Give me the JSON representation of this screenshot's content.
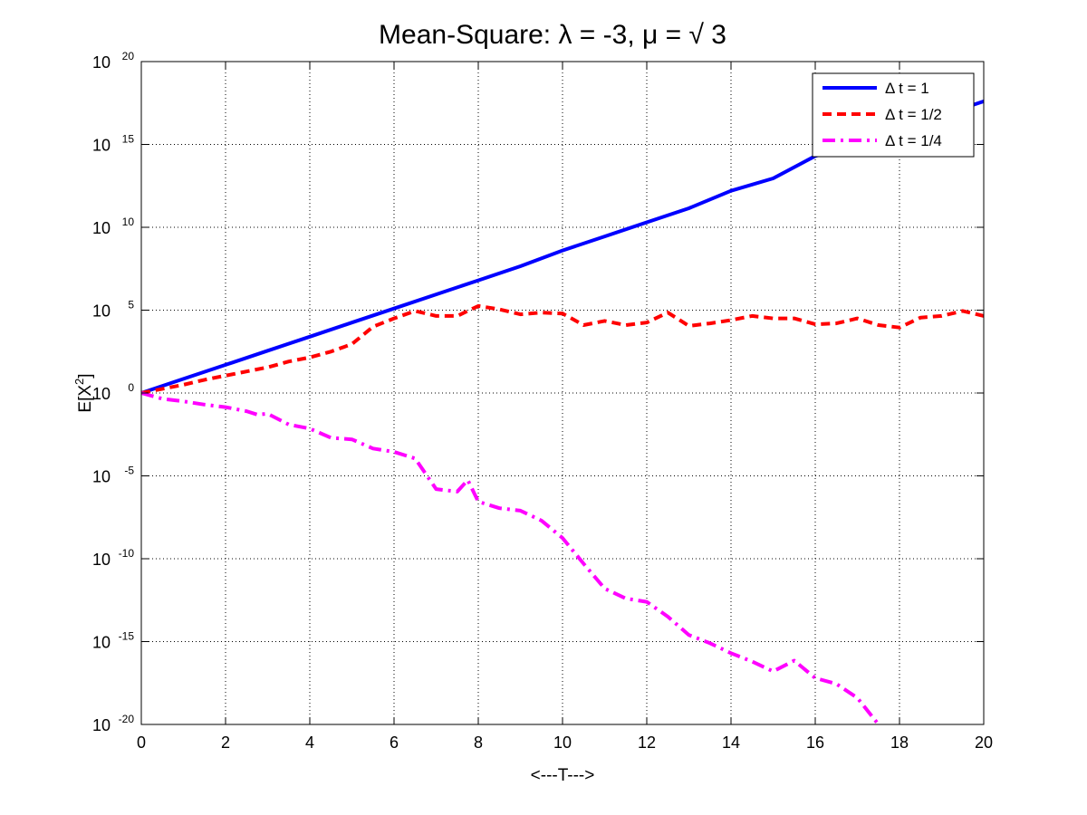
{
  "chart_data": {
    "type": "line",
    "title": "Mean-Square: λ = -3, μ = √ 3",
    "xlabel": "<---T--->",
    "ylabel_base": "E[X",
    "ylabel_exp": "2",
    "ylabel_close": "]",
    "xlim": [
      0,
      20
    ],
    "ylim_exponent": [
      -20,
      20
    ],
    "yscale": "log",
    "grid": true,
    "legend_position": "top-right",
    "x_ticks": [
      "0",
      "2",
      "4",
      "6",
      "8",
      "10",
      "12",
      "14",
      "16",
      "18",
      "20"
    ],
    "y_tick_base": "10",
    "y_tick_exponents": [
      "-20",
      "-15",
      "-10",
      "-5",
      "0",
      "5",
      "10",
      "15",
      "20"
    ],
    "series": [
      {
        "name": "Δ t = 1",
        "color": "#0000FF",
        "style": "solid",
        "x": [
          0,
          1,
          2,
          3,
          4,
          5,
          6,
          7,
          8,
          9,
          10,
          11,
          12,
          13,
          14,
          15,
          16,
          17,
          18,
          19,
          20
        ],
        "log10_y": [
          0,
          0.85,
          1.7,
          2.55,
          3.4,
          4.25,
          5.1,
          5.95,
          6.8,
          7.65,
          8.6,
          9.45,
          10.3,
          11.15,
          12.2,
          12.95,
          14.3,
          15.05,
          15.9,
          16.75,
          17.6
        ]
      },
      {
        "name": "Δ t = 1/2",
        "color": "#FF0000",
        "style": "dashed",
        "x": [
          0,
          0.5,
          1,
          1.5,
          2,
          2.5,
          3,
          3.5,
          4,
          4.5,
          5,
          5.5,
          6,
          6.5,
          7,
          7.5,
          8,
          8.5,
          9,
          9.5,
          10,
          10.5,
          11,
          11.5,
          12,
          12.5,
          13,
          13.5,
          14,
          14.5,
          15,
          15.5,
          16,
          16.5,
          17,
          17.5,
          18,
          18.5,
          19,
          19.5,
          20
        ],
        "log10_y": [
          0,
          0.25,
          0.5,
          0.8,
          1.05,
          1.3,
          1.55,
          1.9,
          2.15,
          2.5,
          2.95,
          4.0,
          4.5,
          4.95,
          4.65,
          4.65,
          5.25,
          5.05,
          4.75,
          4.85,
          4.8,
          4.1,
          4.35,
          4.1,
          4.25,
          4.85,
          4.05,
          4.2,
          4.4,
          4.65,
          4.5,
          4.5,
          4.15,
          4.2,
          4.5,
          4.1,
          3.95,
          4.55,
          4.65,
          4.95,
          4.65
        ]
      },
      {
        "name": "Δ t = 1/4",
        "color": "#FF00FF",
        "style": "dashdot",
        "x": [
          0,
          0.5,
          1,
          1.5,
          2,
          2.5,
          2.75,
          3,
          3.5,
          4,
          4.5,
          5,
          5.5,
          6,
          6.5,
          7,
          7.5,
          7.75,
          8,
          8.5,
          9,
          9.5,
          10,
          10.5,
          11,
          11.5,
          12,
          12.5,
          13,
          13.5,
          14,
          14.5,
          15,
          15.5,
          16,
          16.5,
          17,
          17.5
        ],
        "log10_y": [
          0,
          -0.35,
          -0.5,
          -0.7,
          -0.85,
          -1.1,
          -1.3,
          -1.25,
          -1.9,
          -2.15,
          -2.7,
          -2.8,
          -3.35,
          -3.55,
          -3.95,
          -5.8,
          -5.95,
          -5.25,
          -6.55,
          -6.95,
          -7.1,
          -7.7,
          -8.75,
          -10.3,
          -11.8,
          -12.4,
          -12.6,
          -13.5,
          -14.6,
          -15.1,
          -15.7,
          -16.2,
          -16.8,
          -16.15,
          -17.2,
          -17.55,
          -18.4,
          -20.0
        ]
      }
    ]
  }
}
